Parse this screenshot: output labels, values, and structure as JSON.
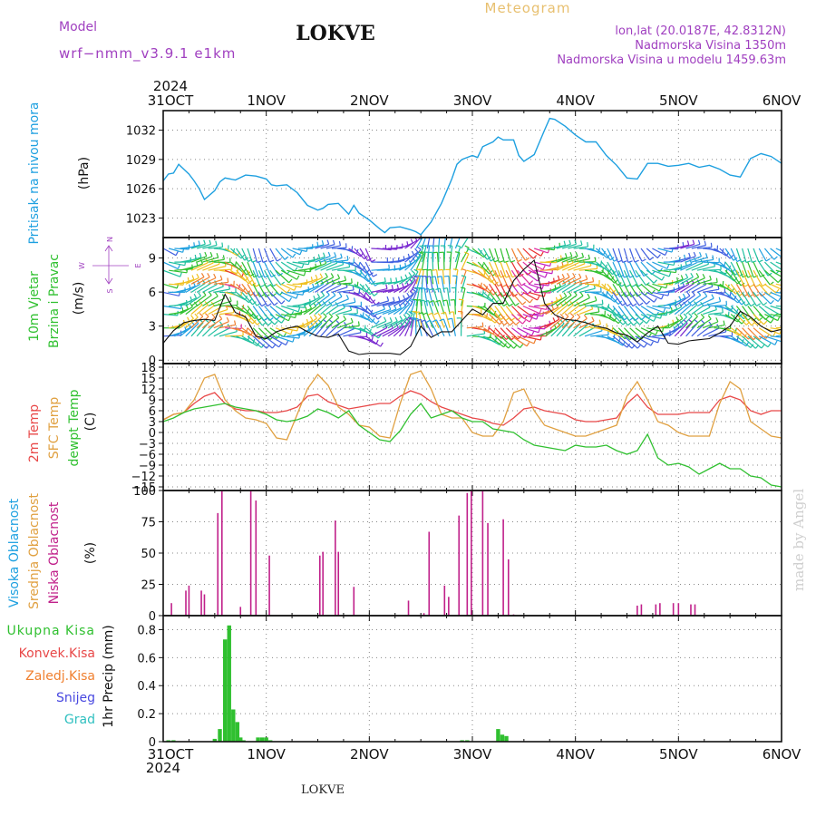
{
  "header": {
    "model_label": "Model",
    "model_name": "wrf−nmm_v3.9.1  e1km",
    "station": "LOKVE",
    "meteogram": "Meteogram",
    "lonlat": "lon,lat (20.0187E, 42.8312N)",
    "elevation": "Nadmorska Visina 1350m",
    "model_elevation": "Nadmorska Visina u modelu 1459.63m",
    "footer_station": "LOKVE",
    "watermark": "made by Angel"
  },
  "colors": {
    "pressure": "#1ea0e0",
    "temp2m": "#e84848",
    "sfc": "#e0a040",
    "dewpt": "#30c030",
    "cloud_low": "#c0208a",
    "precip_total": "#30c030",
    "title_purple": "#a040c0",
    "meteogram_orange": "#e8c070"
  },
  "time_axis": {
    "year": "2024",
    "labels": [
      "31OCT",
      "1NOV",
      "2NOV",
      "3NOV",
      "4NOV",
      "5NOV",
      "6NOV"
    ]
  },
  "panels": {
    "pressure": {
      "label": "Pritisak na nivou mora",
      "unit": "(hPa)"
    },
    "wind": {
      "label1": "10m Vjetar",
      "label2": "Brzina i Pravac",
      "unit": "(m/s)",
      "compass_n": "N",
      "compass_w": "W",
      "compass_e": "E",
      "compass_s": "S"
    },
    "temp": {
      "label1": "2m Temp",
      "label2": "SFC Temp",
      "label3": "dewpt Temp",
      "unit": "(C)"
    },
    "cloud": {
      "label1": "Visoka Oblacnost",
      "label2": "Srednja Oblacnost",
      "label3": "Niska Oblacnost",
      "unit": "(%)"
    },
    "precip": {
      "legend": [
        "Ukupna Kisa",
        "Konvek.Kisa",
        "Zaledj.Kisa",
        "Snijeg",
        "Grad"
      ],
      "unit": "1hr Precip (mm)"
    }
  },
  "chart_data": [
    {
      "type": "line",
      "title": "Pritisak na nivou mora",
      "ylabel": "(hPa)",
      "ylim": [
        1021,
        1034
      ],
      "yticks": [
        1023,
        1026,
        1029,
        1032
      ],
      "x_days": [
        0,
        0.05,
        0.1,
        0.15,
        0.2,
        0.25,
        0.3,
        0.35,
        0.4,
        0.5,
        0.55,
        0.6,
        0.7,
        0.8,
        0.9,
        1.0,
        1.05,
        1.1,
        1.2,
        1.3,
        1.4,
        1.5,
        1.55,
        1.6,
        1.7,
        1.8,
        1.85,
        1.9,
        2.0,
        2.1,
        2.15,
        2.2,
        2.3,
        2.4,
        2.45,
        2.5,
        2.6,
        2.7,
        2.8,
        2.85,
        2.9,
        3.0,
        3.05,
        3.1,
        3.2,
        3.25,
        3.3,
        3.4,
        3.45,
        3.5,
        3.6,
        3.7,
        3.75,
        3.8,
        3.9,
        4.0,
        4.1,
        4.2,
        4.3,
        4.4,
        4.5,
        4.6,
        4.7,
        4.8,
        4.9,
        5.0,
        5.1,
        5.2,
        5.3,
        5.4,
        5.5,
        5.6,
        5.7,
        5.8,
        5.9,
        6.0
      ],
      "series": [
        {
          "values": [
            1026.8,
            1027.5,
            1027.6,
            1028.5,
            1028.0,
            1027.5,
            1026.8,
            1026.0,
            1024.9,
            1025.8,
            1026.7,
            1027.1,
            1026.9,
            1027.4,
            1027.3,
            1027.0,
            1026.4,
            1026.3,
            1026.4,
            1025.6,
            1024.3,
            1023.8,
            1024.0,
            1024.4,
            1024.5,
            1023.4,
            1024.3,
            1023.5,
            1022.8,
            1021.9,
            1021.5,
            1022.0,
            1022.1,
            1021.8,
            1021.6,
            1021.3,
            1022.6,
            1024.5,
            1027.0,
            1028.5,
            1029.0,
            1029.4,
            1029.2,
            1030.3,
            1030.8,
            1031.3,
            1031.0,
            1031.0,
            1029.4,
            1028.8,
            1029.5,
            1032.0,
            1033.2,
            1033.1,
            1032.4,
            1031.5,
            1030.8,
            1030.8,
            1029.4,
            1028.4,
            1027.1,
            1027.0,
            1028.6,
            1028.6,
            1028.3,
            1028.4,
            1028.6,
            1028.2,
            1028.4,
            1028.0,
            1027.4,
            1027.2,
            1029.1,
            1029.6,
            1029.3,
            1028.6
          ]
        }
      ]
    },
    {
      "type": "line",
      "title": "10m Vjetar Brzina i Pravac",
      "ylabel": "(m/s)",
      "ylim": [
        -0.3,
        10.8
      ],
      "yticks": [
        0,
        3,
        6,
        9
      ],
      "x_days": [
        0,
        0.1,
        0.2,
        0.3,
        0.4,
        0.5,
        0.6,
        0.7,
        0.8,
        0.9,
        1.0,
        1.1,
        1.2,
        1.3,
        1.4,
        1.5,
        1.6,
        1.7,
        1.8,
        1.9,
        2.0,
        2.1,
        2.2,
        2.3,
        2.4,
        2.5,
        2.6,
        2.7,
        2.8,
        2.9,
        3.0,
        3.1,
        3.2,
        3.3,
        3.4,
        3.5,
        3.6,
        3.7,
        3.8,
        3.9,
        4.0,
        4.1,
        4.2,
        4.3,
        4.4,
        4.5,
        4.6,
        4.7,
        4.8,
        4.9,
        5.0,
        5.1,
        5.2,
        5.3,
        5.4,
        5.5,
        5.6,
        5.7,
        5.8,
        5.9,
        6.0
      ],
      "series": [
        {
          "name": "",
          "values": [
            1.5,
            2.6,
            3.3,
            3.5,
            3.6,
            3.5,
            5.8,
            4.2,
            3.8,
            2.1,
            1.9,
            2.5,
            2.8,
            3.0,
            2.5,
            2.1,
            2.0,
            2.3,
            0.8,
            0.5,
            0.6,
            0.6,
            0.6,
            0.5,
            1.2,
            3.0,
            2.0,
            2.5,
            2.5,
            3.5,
            4.5,
            4.0,
            5.0,
            5.0,
            7.0,
            8.0,
            8.8,
            5.0,
            4.0,
            3.6,
            3.5,
            3.3,
            3.0,
            2.8,
            2.4,
            2.2,
            1.6,
            2.4,
            3.0,
            1.5,
            1.4,
            1.7,
            1.8,
            1.9,
            2.4,
            3.0,
            4.3,
            3.8,
            3.0,
            2.5,
            2.7
          ]
        }
      ]
    },
    {
      "type": "line",
      "title": "2m Temp / SFC Temp / dewpt Temp",
      "ylabel": "(C)",
      "ylim": [
        -16,
        19
      ],
      "yticks": [
        -15,
        -12,
        -9,
        -6,
        -3,
        0,
        3,
        6,
        9,
        12,
        15,
        18
      ],
      "x_days": [
        0,
        0.1,
        0.2,
        0.3,
        0.4,
        0.5,
        0.6,
        0.7,
        0.8,
        0.9,
        1.0,
        1.1,
        1.2,
        1.3,
        1.4,
        1.5,
        1.6,
        1.7,
        1.8,
        1.9,
        2.0,
        2.1,
        2.2,
        2.3,
        2.4,
        2.5,
        2.6,
        2.7,
        2.8,
        2.9,
        3.0,
        3.1,
        3.2,
        3.3,
        3.4,
        3.5,
        3.6,
        3.7,
        3.8,
        3.9,
        4.0,
        4.1,
        4.2,
        4.3,
        4.4,
        4.5,
        4.6,
        4.7,
        4.8,
        4.9,
        5.0,
        5.1,
        5.2,
        5.3,
        5.4,
        5.5,
        5.6,
        5.7,
        5.8,
        5.9,
        6.0
      ],
      "series": [
        {
          "name": "2m Temp",
          "values": [
            3.5,
            5.0,
            5.5,
            8.0,
            10.0,
            11.0,
            8.0,
            6.5,
            6.0,
            6.0,
            5.5,
            5.5,
            6.0,
            7.0,
            10.0,
            10.5,
            8.5,
            7.5,
            6.5,
            7.0,
            7.5,
            8.0,
            8.0,
            10.0,
            11.5,
            10.5,
            8.5,
            7.0,
            6.0,
            5.0,
            4.0,
            3.5,
            2.5,
            2.0,
            4.0,
            6.5,
            7.0,
            6.0,
            5.5,
            5.0,
            3.5,
            3.0,
            3.0,
            3.5,
            4.0,
            8.0,
            10.5,
            7.0,
            5.0,
            5.0,
            5.0,
            5.5,
            5.5,
            5.5,
            9.0,
            10.0,
            9.0,
            6.0,
            5.0,
            6.0,
            6.0
          ]
        },
        {
          "name": "SFC Temp",
          "values": [
            3.5,
            5.0,
            5.5,
            9.0,
            15.0,
            16.0,
            9.0,
            6.0,
            4.0,
            3.5,
            2.5,
            -1.5,
            -2.0,
            5.0,
            12.0,
            16.0,
            13.0,
            7.0,
            5.0,
            2.0,
            1.5,
            -1.0,
            -1.5,
            8.0,
            16.0,
            17.0,
            12.0,
            5.0,
            4.0,
            4.0,
            0.0,
            -1.0,
            -1.0,
            3.0,
            11.0,
            12.0,
            6.0,
            2.0,
            1.0,
            0.0,
            -1.0,
            -1.0,
            0.0,
            1.0,
            2.0,
            10.0,
            14.0,
            9.0,
            3.0,
            2.0,
            0.0,
            -1.0,
            -1.0,
            -1.0,
            8.0,
            14.0,
            12.0,
            3.0,
            1.0,
            -1.0,
            -1.5
          ]
        },
        {
          "name": "dewpt Temp",
          "values": [
            3.0,
            4.0,
            5.5,
            6.5,
            7.0,
            7.5,
            8.0,
            7.0,
            6.5,
            6.0,
            5.0,
            3.5,
            3.0,
            3.5,
            4.5,
            6.5,
            5.5,
            4.0,
            6.0,
            2.0,
            0.0,
            -2.0,
            -2.5,
            0.5,
            5.0,
            8.0,
            4.0,
            5.0,
            6.0,
            4.0,
            3.0,
            3.0,
            1.0,
            0.5,
            0.0,
            -2.0,
            -3.5,
            -4.0,
            -4.5,
            -5.0,
            -3.5,
            -4.0,
            -4.0,
            -3.5,
            -5.0,
            -6.0,
            -5.0,
            -0.5,
            -7.0,
            -9.0,
            -8.5,
            -9.5,
            -11.5,
            -10.0,
            -8.5,
            -10.0,
            -10.0,
            -12.0,
            -12.5,
            -14.5,
            -15.0
          ]
        }
      ]
    },
    {
      "type": "bar",
      "title": "Niska Oblacnost",
      "ylabel": "(%)",
      "ylim": [
        0,
        100
      ],
      "yticks": [
        0,
        25,
        50,
        75,
        100
      ],
      "x_days": [
        0.08,
        0.22,
        0.25,
        0.37,
        0.4,
        0.53,
        0.57,
        0.75,
        0.85,
        0.9,
        1.03,
        1.52,
        1.55,
        1.67,
        1.7,
        1.85,
        2.38,
        2.53,
        2.58,
        2.73,
        2.77,
        2.87,
        2.95,
        2.99,
        3.1,
        3.15,
        3.3,
        3.35,
        3.4,
        4.6,
        4.64,
        4.78,
        4.82,
        4.95,
        5.0,
        5.12,
        5.16
      ],
      "series": [
        {
          "name": "Niska Oblacnost",
          "values": [
            10,
            20,
            24,
            20,
            17,
            82,
            100,
            7,
            100,
            92,
            48,
            48,
            51,
            76,
            51,
            23,
            12,
            2,
            67,
            24,
            15,
            80,
            98,
            100,
            100,
            74,
            77,
            45,
            1,
            8,
            9,
            9,
            10,
            10,
            10,
            9,
            9
          ]
        }
      ]
    },
    {
      "type": "bar",
      "title": "1hr Precip",
      "ylabel": "1hr Precip (mm)",
      "ylim": [
        0,
        0.9
      ],
      "yticks": [
        0,
        0.2,
        0.4,
        0.6,
        0.8
      ],
      "x_days": [
        0.05,
        0.1,
        0.5,
        0.55,
        0.6,
        0.64,
        0.68,
        0.72,
        0.75,
        0.78,
        0.92,
        0.96,
        1.0,
        1.04,
        2.9,
        2.95,
        3.25,
        3.29,
        3.33
      ],
      "series": [
        {
          "name": "Ukupna Kisa",
          "values": [
            0.01,
            0.01,
            0.02,
            0.09,
            0.73,
            0.83,
            0.23,
            0.14,
            0.03,
            0.01,
            0.03,
            0.03,
            0.03,
            0.01,
            0.01,
            0.01,
            0.09,
            0.05,
            0.04
          ]
        }
      ]
    }
  ]
}
